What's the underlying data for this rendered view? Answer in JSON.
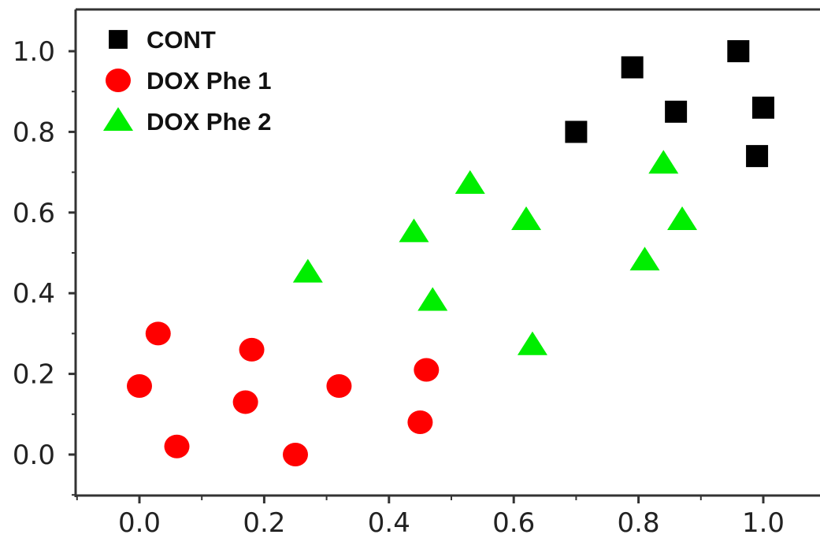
{
  "chart_data": {
    "type": "scatter",
    "title": "",
    "xlabel": "",
    "ylabel": "",
    "xlim": [
      -0.1,
      1.08
    ],
    "ylim": [
      -0.1,
      1.1
    ],
    "x_ticks": [
      0.0,
      0.2,
      0.4,
      0.6,
      0.8,
      1.0
    ],
    "x_tick_labels": [
      "0.0",
      "0.2",
      "0.4",
      "0.6",
      "0.8",
      "1.0"
    ],
    "y_ticks": [
      0.0,
      0.2,
      0.4,
      0.6,
      0.8,
      1.0
    ],
    "y_tick_labels": [
      "0.0",
      "0.2",
      "0.4",
      "0.6",
      "0.8",
      "1.0"
    ],
    "grid": false,
    "legend_position": "top-left",
    "series": [
      {
        "name": "CONT",
        "marker": "square",
        "color": "#000000",
        "points": [
          {
            "x": 0.7,
            "y": 0.8
          },
          {
            "x": 0.79,
            "y": 0.96
          },
          {
            "x": 0.86,
            "y": 0.85
          },
          {
            "x": 0.96,
            "y": 1.0
          },
          {
            "x": 1.0,
            "y": 0.86
          },
          {
            "x": 0.99,
            "y": 0.74
          }
        ]
      },
      {
        "name": "DOX Phe 1",
        "marker": "circle",
        "color": "#ff0000",
        "points": [
          {
            "x": 0.03,
            "y": 0.3
          },
          {
            "x": 0.0,
            "y": 0.17
          },
          {
            "x": 0.06,
            "y": 0.02
          },
          {
            "x": 0.18,
            "y": 0.26
          },
          {
            "x": 0.17,
            "y": 0.13
          },
          {
            "x": 0.25,
            "y": 0.0
          },
          {
            "x": 0.32,
            "y": 0.17
          },
          {
            "x": 0.46,
            "y": 0.21
          },
          {
            "x": 0.45,
            "y": 0.08
          }
        ]
      },
      {
        "name": "DOX Phe 2",
        "marker": "triangle",
        "color": "#00ee00",
        "points": [
          {
            "x": 0.27,
            "y": 0.45
          },
          {
            "x": 0.44,
            "y": 0.55
          },
          {
            "x": 0.53,
            "y": 0.67
          },
          {
            "x": 0.47,
            "y": 0.38
          },
          {
            "x": 0.62,
            "y": 0.58
          },
          {
            "x": 0.63,
            "y": 0.27
          },
          {
            "x": 0.84,
            "y": 0.72
          },
          {
            "x": 0.87,
            "y": 0.58
          },
          {
            "x": 0.81,
            "y": 0.48
          }
        ]
      }
    ]
  }
}
